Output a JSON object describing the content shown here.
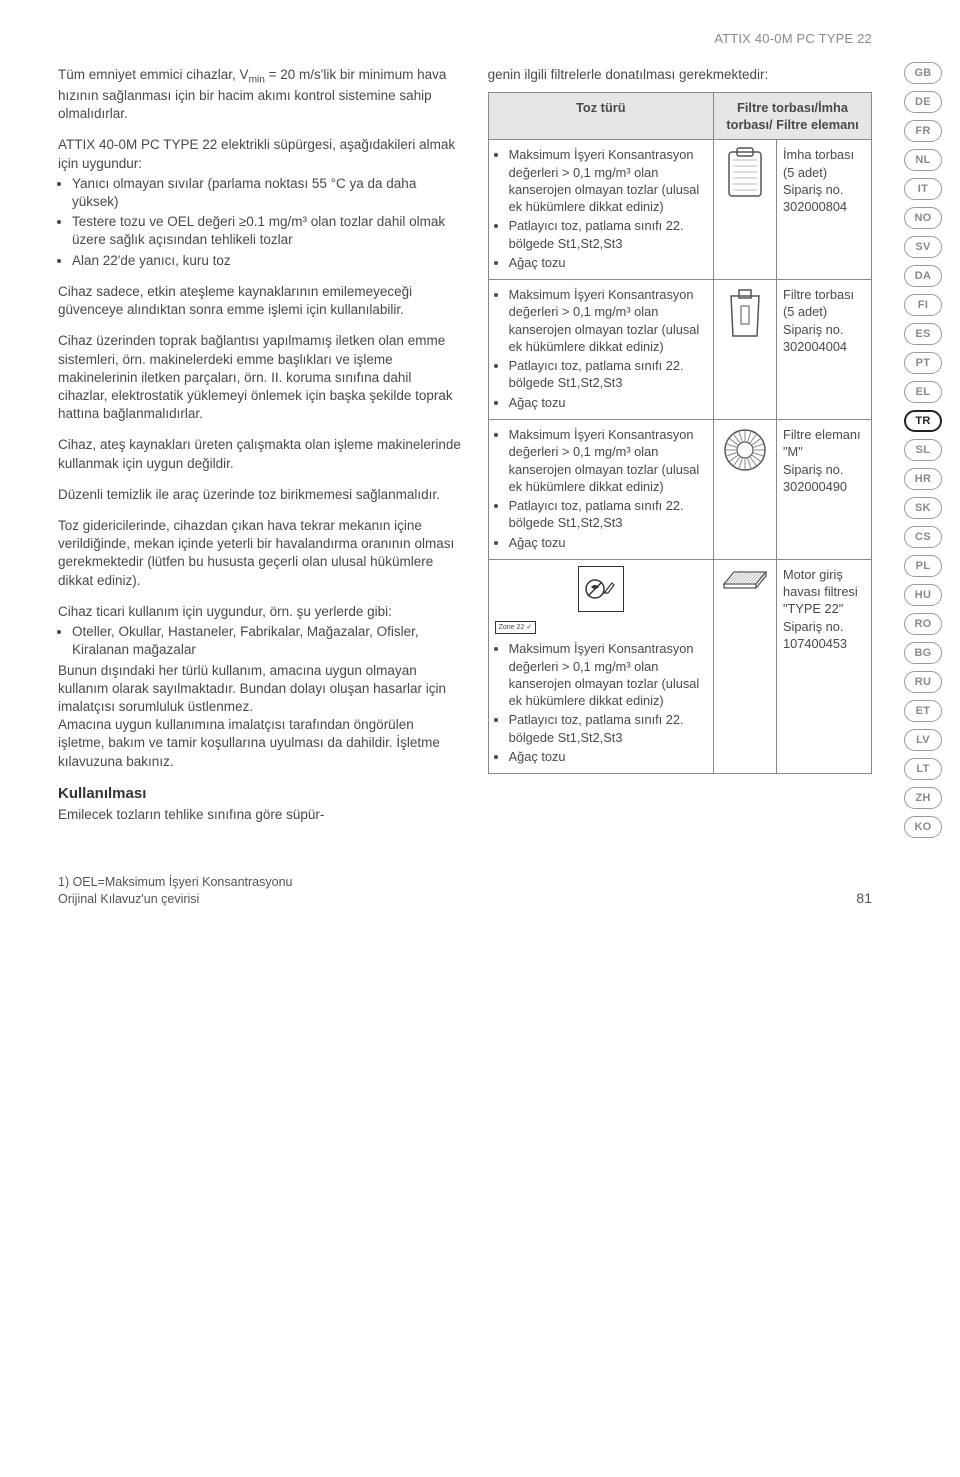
{
  "header": {
    "product_title": "ATTIX 40-0M PC TYPE 22"
  },
  "left": {
    "p1_html": "Tüm emniyet emmici cihazlar, V<sub>min</sub> = 20 m/s'lik bir minimum hava hızının sağlanması için bir hacim akımı kontrol sistemine sahip olmalıdırlar.",
    "p2_intro": "ATTIX 40-0M PC TYPE 22 elektrikli süpürgesi, aşağıdakileri almak için uygundur:",
    "p2_items": [
      "Yanıcı olmayan sıvılar (parlama noktası 55 °C ya da daha yüksek)",
      "Testere tozu ve OEL değeri ≥0.1 mg/m³ olan tozlar dahil olmak üzere sağlık açısından tehlikeli tozlar",
      "Alan 22'de yanıcı, kuru toz"
    ],
    "p3": "Cihaz sadece, etkin ateşleme kaynaklarının emilemeyeceği güvenceye alındıktan sonra emme işlemi için kullanılabilir.",
    "p4": "Cihaz üzerinden toprak bağlantısı yapılmamış iletken olan emme sistemleri, örn. makinelerdeki emme başlıkları ve işleme makinelerinin iletken parçaları, örn. II. koruma sınıfına dahil cihazlar, elektrostatik yüklemeyi önlemek için başka şekilde toprak hattına bağlanmalıdırlar.",
    "p5": "Cihaz, ateş kaynakları üreten çalışmakta olan işleme makinelerinde kullanmak için uygun değildir.",
    "p6": "Düzenli temizlik ile araç üzerinde toz birikmemesi sağlanmalıdır.",
    "p7": "Toz gidericilerinde, cihazdan çıkan hava tekrar mekanın içine verildiğinde, mekan içinde yeterli bir havalandırma oranının olması gerekmektedir (lütfen bu hususta geçerli olan ulusal hükümlere dikkat ediniz).",
    "p8_intro": "Cihaz ticari kullanım için uygundur, örn. şu yerlerde gibi:",
    "p8_items": [
      "Oteller, Okullar, Hastaneler, Fabrikalar, Mağazalar, Ofisler, Kiralanan mağazalar"
    ],
    "p8_after": "Bunun dışındaki her türlü kullanım, amacına uygun olmayan kullanım olarak sayılmaktadır. Bundan dolayı oluşan hasarlar için imalatçısı sorumluluk üstlenmez.\nAmacına uygun kullanımına imalatçısı tarafından öngörülen işletme, bakım ve tamir koşullarına uyulması da dahildir. İşletme kılavuzuna bakınız.",
    "section_heading": "Kullanılması",
    "p9": "Emilecek tozların tehlike sınıfına göre süpür-"
  },
  "right": {
    "intro": "genin ilgili filtrelerle donatılması gerekmektedir:",
    "th1": "Toz türü",
    "th2": "Filtre torbası/İmha torbası/ Filtre elemanı",
    "dust_items": [
      "Maksimum İşyeri Konsantrasyon değerleri > 0,1 mg/m³ olan kanserojen olmayan tozlar (ulusal ek hükümlere dikkat ediniz)",
      "Patlayıcı toz, patlama sınıfı 22. bölgede St1,St2,St3",
      "Ağaç tozu"
    ],
    "rows": [
      {
        "result": "İmha torbası\n(5 adet)\nSipariş no.\n302000804"
      },
      {
        "result": "Filtre torbası\n(5 adet)\nSipariş no.\n302004004"
      },
      {
        "result": "Filtre elemanı\n\"M\"\nSipariş no.\n302000490"
      },
      {
        "result": "Motor giriş havası filtresi\n\"TYPE 22\"\nSipariş no.\n107400453"
      }
    ],
    "zone_label": "Zone 22"
  },
  "langs": [
    "GB",
    "DE",
    "FR",
    "NL",
    "IT",
    "NO",
    "SV",
    "DA",
    "FI",
    "ES",
    "PT",
    "EL",
    "TR",
    "SL",
    "HR",
    "SK",
    "CS",
    "PL",
    "HU",
    "RO",
    "BG",
    "RU",
    "ET",
    "LV",
    "LT",
    "ZH",
    "KO"
  ],
  "active_lang": "TR",
  "footer": {
    "note1": "1) OEL=Maksimum İşyeri Konsantrasyonu",
    "note2": "Orijinal Kılavuz'un çevirisi",
    "page_num": "81"
  },
  "colors": {
    "text_gray": "#4a4a4a",
    "header_gray": "#8a8a8a",
    "border": "#888",
    "th_bg": "#e6e6e6",
    "pill_border": "#9a9a9a"
  }
}
